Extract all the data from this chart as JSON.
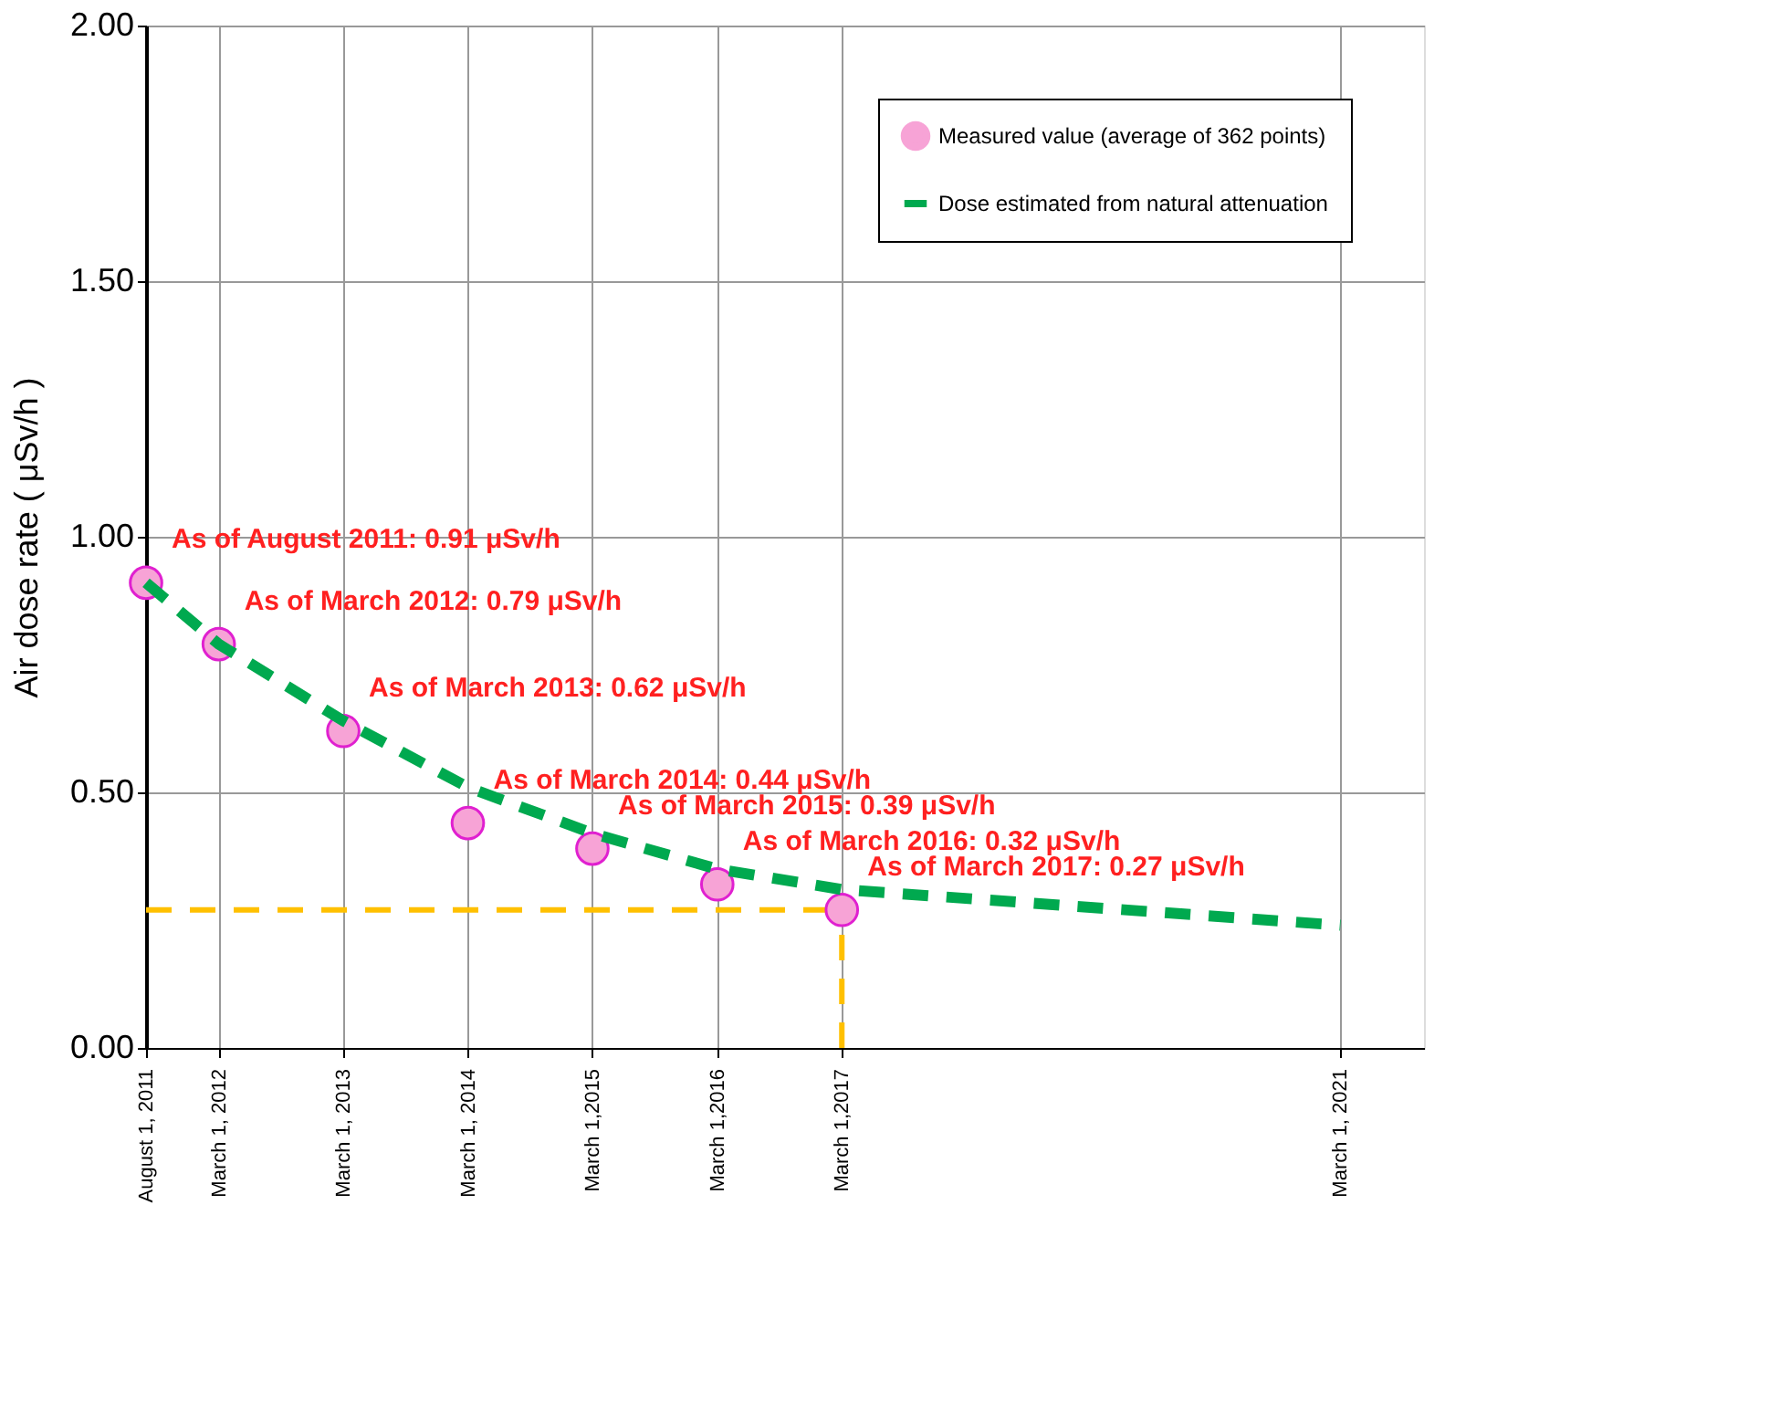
{
  "chart_data": {
    "type": "scatter",
    "ylabel": "Air dose rate ( μSv/h )",
    "xlim": [
      "2011-08-01",
      "2021-11-01"
    ],
    "xticks": [
      {
        "value": "2011-08-01",
        "label": "August 1, 2011"
      },
      {
        "value": "2012-03-01",
        "label": "March 1, 2012"
      },
      {
        "value": "2013-03-01",
        "label": "March 1, 2013"
      },
      {
        "value": "2014-03-01",
        "label": "March 1, 2014"
      },
      {
        "value": "2015-03-01",
        "label": "March 1,2015"
      },
      {
        "value": "2016-03-01",
        "label": "March 1,2016"
      },
      {
        "value": "2017-03-01",
        "label": "March 1,2017"
      },
      {
        "value": "2021-03-01",
        "label": "March 1, 2021"
      }
    ],
    "ylim": [
      0,
      2
    ],
    "yticks": [
      {
        "value": 0,
        "label": "0.00"
      },
      {
        "value": 0.5,
        "label": "0.50"
      },
      {
        "value": 1,
        "label": "1.00"
      },
      {
        "value": 1.5,
        "label": "1.50"
      },
      {
        "value": 2,
        "label": "2.00"
      }
    ],
    "series": [
      {
        "name": "Measured value (average of 362 points)",
        "color": "#f7a3d6",
        "marker": "circle",
        "x": [
          "2011-08-01",
          "2012-03-01",
          "2013-03-01",
          "2014-03-01",
          "2015-03-01",
          "2016-03-01",
          "2017-03-01"
        ],
        "values": [
          0.91,
          0.79,
          0.62,
          0.44,
          0.39,
          0.32,
          0.27
        ]
      },
      {
        "name": "Dose estimated from natural attenuation",
        "type": "line",
        "color": "#00a94f",
        "line_style": "dashed",
        "x": [
          "2011-08-01",
          "2012-03-01",
          "2013-03-01",
          "2014-03-01",
          "2015-03-01",
          "2016-03-01",
          "2017-03-01",
          "2021-03-01"
        ],
        "values": [
          0.91,
          0.79,
          0.64,
          0.51,
          0.42,
          0.35,
          0.31,
          0.24
        ]
      }
    ],
    "ref_lines": [
      {
        "axis": "y",
        "value": 0.27,
        "color": "#ffc000",
        "line_style": "dashed"
      },
      {
        "axis": "x",
        "value": "2017-03-01",
        "color": "#ffc000",
        "line_style": "dashed"
      }
    ],
    "annotations": [
      {
        "text": "As of August 2011:   0.91 μSv/h",
        "x": "2011-08-01",
        "y": 0.91
      },
      {
        "text": "As of March 2012:   0.79 μSv/h",
        "x": "2012-03-01",
        "y": 0.79
      },
      {
        "text": "As of March 2013:   0.62 μSv/h",
        "x": "2013-03-01",
        "y": 0.62
      },
      {
        "text": "As of March 2014:   0.44 μSv/h",
        "x": "2014-03-01",
        "y": 0.44
      },
      {
        "text": "As of March 2015:   0.39 μSv/h",
        "x": "2015-03-01",
        "y": 0.39
      },
      {
        "text": "As of March 2016:   0.32 μSv/h",
        "x": "2016-03-01",
        "y": 0.32
      },
      {
        "text": "As of March 2017:   0.27 μSv/h",
        "x": "2017-03-01",
        "y": 0.27
      }
    ],
    "grid": true,
    "legend": "top right"
  }
}
